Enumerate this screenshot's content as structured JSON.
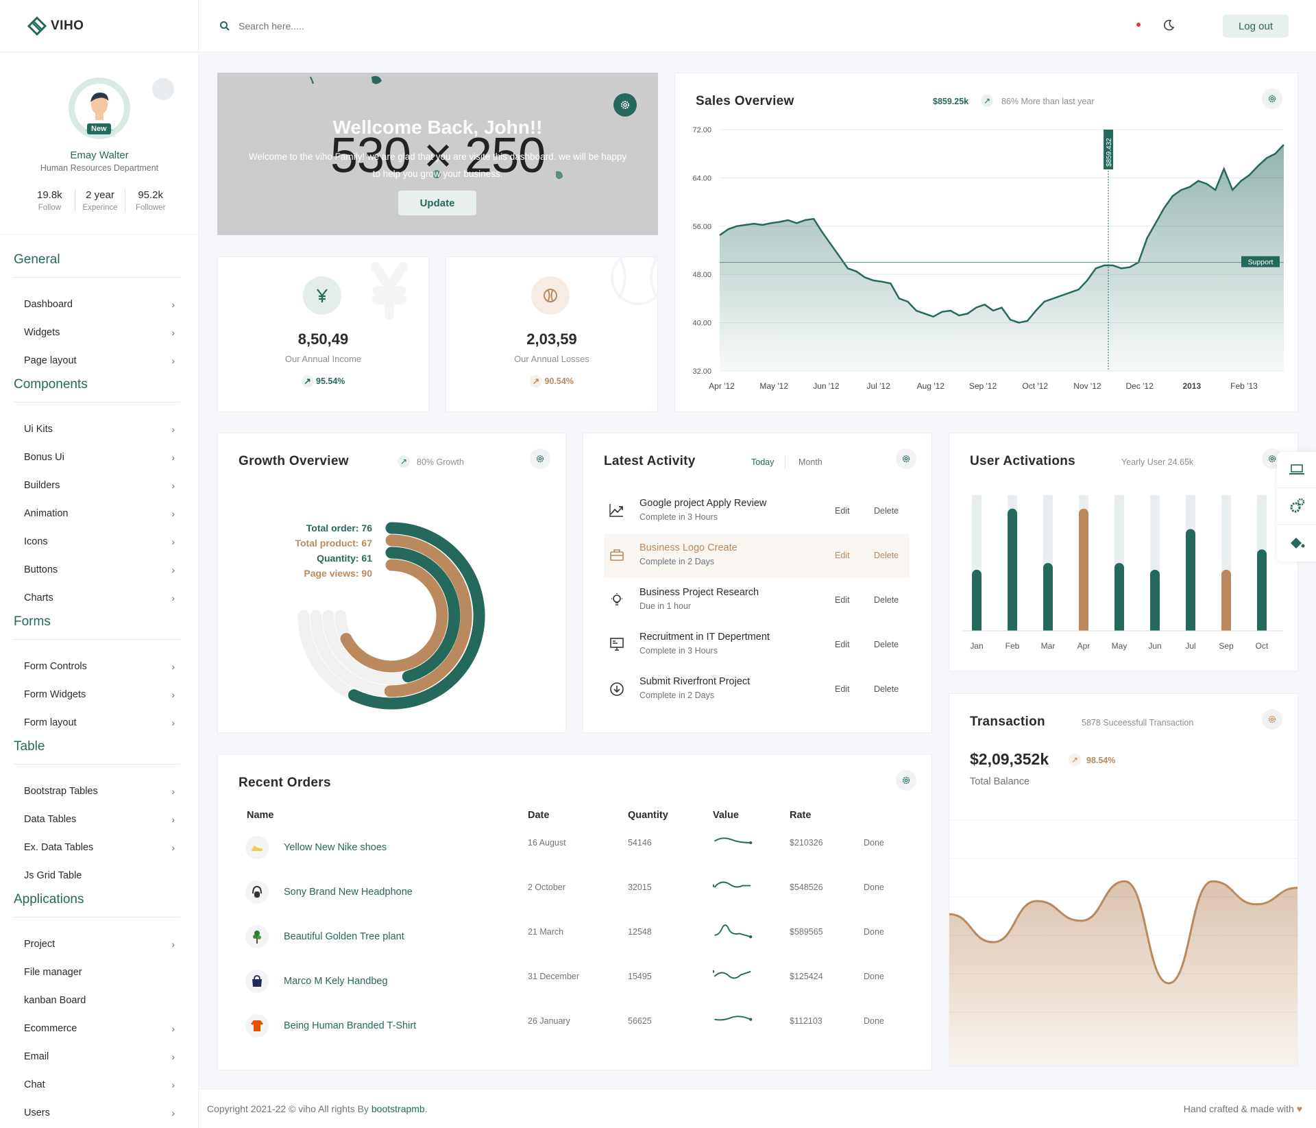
{
  "brand": {
    "name": "VIHO"
  },
  "search": {
    "placeholder": "Search here....."
  },
  "header": {
    "logout_label": "Log out"
  },
  "profile": {
    "badge": "New",
    "name": "Emay Walter",
    "department": "Human Resources Department",
    "stats": [
      {
        "value": "19.8k",
        "label": "Follow"
      },
      {
        "value": "2 year",
        "label": "Experince"
      },
      {
        "value": "95.2k",
        "label": "Follower"
      }
    ]
  },
  "sidebar": {
    "sections": [
      {
        "title": "General",
        "items": [
          {
            "label": "Dashboard",
            "chevron": true
          },
          {
            "label": "Widgets",
            "chevron": true
          },
          {
            "label": "Page layout",
            "chevron": true
          }
        ]
      },
      {
        "title": "Components",
        "items": [
          {
            "label": "Ui Kits",
            "chevron": true
          },
          {
            "label": "Bonus Ui",
            "chevron": true
          },
          {
            "label": "Builders",
            "chevron": true
          },
          {
            "label": "Animation",
            "chevron": true
          },
          {
            "label": "Icons",
            "chevron": true
          },
          {
            "label": "Buttons",
            "chevron": true
          },
          {
            "label": "Charts",
            "chevron": true
          }
        ]
      },
      {
        "title": "Forms",
        "items": [
          {
            "label": "Form Controls",
            "chevron": true
          },
          {
            "label": "Form Widgets",
            "chevron": true
          },
          {
            "label": "Form layout",
            "chevron": true
          }
        ]
      },
      {
        "title": "Table",
        "items": [
          {
            "label": "Bootstrap Tables",
            "chevron": true
          },
          {
            "label": "Data Tables",
            "chevron": true
          },
          {
            "label": "Ex. Data Tables",
            "chevron": true
          },
          {
            "label": "Js Grid Table",
            "chevron": false
          }
        ]
      },
      {
        "title": "Applications",
        "items": [
          {
            "label": "Project",
            "chevron": true
          },
          {
            "label": "File manager",
            "chevron": false
          },
          {
            "label": "kanban Board",
            "chevron": false
          },
          {
            "label": "Ecommerce",
            "chevron": true
          },
          {
            "label": "Email",
            "chevron": true
          },
          {
            "label": "Chat",
            "chevron": true
          },
          {
            "label": "Users",
            "chevron": true
          }
        ]
      }
    ]
  },
  "welcome": {
    "placeholder": "530 × 250",
    "title": "Wellcome Back, John!!",
    "subtitle": "Welcome to the viho Family! we are glad that you are visite this dashboard. we will be happy to help you grow your business.",
    "button": "Update"
  },
  "income": {
    "value": "8,50,49",
    "label": "Our Annual Income",
    "percent": "95.54%"
  },
  "losses": {
    "value": "2,03,59",
    "label": "Our Annual Losses",
    "percent": "90.54%"
  },
  "sales": {
    "title": "Sales Overview",
    "amount": "$859.25k",
    "note": "86% More than last year",
    "marker_label": "$859.432",
    "support_label": "Support"
  },
  "growth": {
    "title": "Growth Overview",
    "note": "80% Growth",
    "legend": [
      {
        "label": "Total order: 76"
      },
      {
        "label": "Total product: 67"
      },
      {
        "label": "Quantity: 61"
      },
      {
        "label": "Page views: 90"
      }
    ]
  },
  "activity": {
    "title": "Latest Activity",
    "tab_today": "Today",
    "tab_month": "Month",
    "edit_label": "Edit",
    "delete_label": "Delete",
    "items": [
      {
        "title": "Google project Apply Review",
        "time": "Complete in 3 Hours",
        "icon": "trending-up-icon"
      },
      {
        "title": "Business Logo Create",
        "time": "Complete in 2 Days",
        "icon": "briefcase-icon",
        "highlighted": true
      },
      {
        "title": "Business Project Research",
        "time": "Due in 1 hour",
        "icon": "lightbulb-icon"
      },
      {
        "title": "Recruitment in IT Depertment",
        "time": "Complete in 3 Hours",
        "icon": "monitor-icon"
      },
      {
        "title": "Submit Riverfront Project",
        "time": "Complete in 2 Days",
        "icon": "download-circle-icon"
      }
    ]
  },
  "activations": {
    "title": "User Activations",
    "note": "Yearly User 24.65k"
  },
  "transaction": {
    "title": "Transaction",
    "note": "5878 Suceessfull Transaction",
    "amount": "$2,09,352k",
    "percent": "98.54%",
    "balance_label": "Total Balance"
  },
  "orders": {
    "title": "Recent Orders",
    "columns": [
      "Name",
      "Date",
      "Quantity",
      "Value",
      "Rate"
    ],
    "rows": [
      {
        "name": "Yellow New Nike shoes",
        "date": "16 August",
        "quantity": "54146",
        "rate": "$210326",
        "status": "Done",
        "icon": "shoe-icon"
      },
      {
        "name": "Sony Brand New Headphone",
        "date": "2 October",
        "quantity": "32015",
        "rate": "$548526",
        "status": "Done",
        "icon": "headphone-icon"
      },
      {
        "name": "Beautiful Golden Tree plant",
        "date": "21 March",
        "quantity": "12548",
        "rate": "$589565",
        "status": "Done",
        "icon": "plant-icon"
      },
      {
        "name": "Marco M Kely Handbeg",
        "date": "31 December",
        "quantity": "15495",
        "rate": "$125424",
        "status": "Done",
        "icon": "handbag-icon"
      },
      {
        "name": "Being Human Branded T-Shirt",
        "date": "26 January",
        "quantity": "56625",
        "rate": "$112103",
        "status": "Done",
        "icon": "tshirt-icon"
      }
    ]
  },
  "footer": {
    "copyright": "Copyright 2021-22 © viho All rights By ",
    "author": "bootstrapmb",
    "period": ".",
    "handcrafted": "Hand crafted & made with"
  },
  "colors": {
    "primary": "#24695c",
    "secondary": "#ba895d",
    "danger": "#e33"
  },
  "chart_data": [
    {
      "type": "area",
      "title": "Sales Overview",
      "x_ticks": [
        "Apr '12",
        "May '12",
        "Jun '12",
        "Jul '12",
        "Aug '12",
        "Sep '12",
        "Oct '12",
        "Nov '12",
        "Dec '12",
        "2013",
        "Feb '13"
      ],
      "y_ticks": [
        "72.00",
        "64.00",
        "56.00",
        "48.00",
        "40.00",
        "32.00"
      ],
      "ylim": [
        32,
        72
      ],
      "values": [
        54.5,
        55.5,
        56,
        56.2,
        56.4,
        56.2,
        56.5,
        56.7,
        57,
        56.5,
        57,
        57.2,
        55,
        53,
        51,
        49,
        48.5,
        47.5,
        47,
        46.8,
        46.5,
        44,
        43.5,
        42,
        41.5,
        41,
        41.8,
        42,
        41.2,
        41.5,
        42.5,
        43,
        42,
        42.5,
        40.5,
        40,
        40.3,
        42,
        43.5,
        44,
        44.5,
        45,
        45.5,
        47,
        49,
        49.5,
        49.5,
        49,
        49.2,
        50,
        54,
        56.5,
        59,
        61,
        62,
        62.5,
        63.5,
        63,
        62,
        65.5,
        62,
        63.5,
        64.5,
        66,
        67.3,
        68,
        69.5
      ],
      "crosshair_value": "$859.432",
      "reference_line": 50,
      "grid": true
    },
    {
      "type": "bar",
      "title": "User Activations",
      "categories": [
        "Jan",
        "Feb",
        "Mar",
        "Apr",
        "May",
        "Jun",
        "Jul",
        "Sep",
        "Oct"
      ],
      "values": [
        45,
        90,
        50,
        90,
        50,
        45,
        75,
        45,
        60
      ],
      "background_max": 100,
      "highlight": [
        3,
        7
      ]
    },
    {
      "type": "pie",
      "title": "Growth Overview",
      "series": [
        {
          "name": "Total order",
          "value": 76
        },
        {
          "name": "Total product",
          "value": 67
        },
        {
          "name": "Quantity",
          "value": 61
        },
        {
          "name": "Page views",
          "value": 90
        }
      ]
    },
    {
      "type": "area",
      "title": "Transaction",
      "values": [
        62,
        45,
        70,
        58,
        82,
        20,
        82,
        68,
        78
      ]
    }
  ]
}
